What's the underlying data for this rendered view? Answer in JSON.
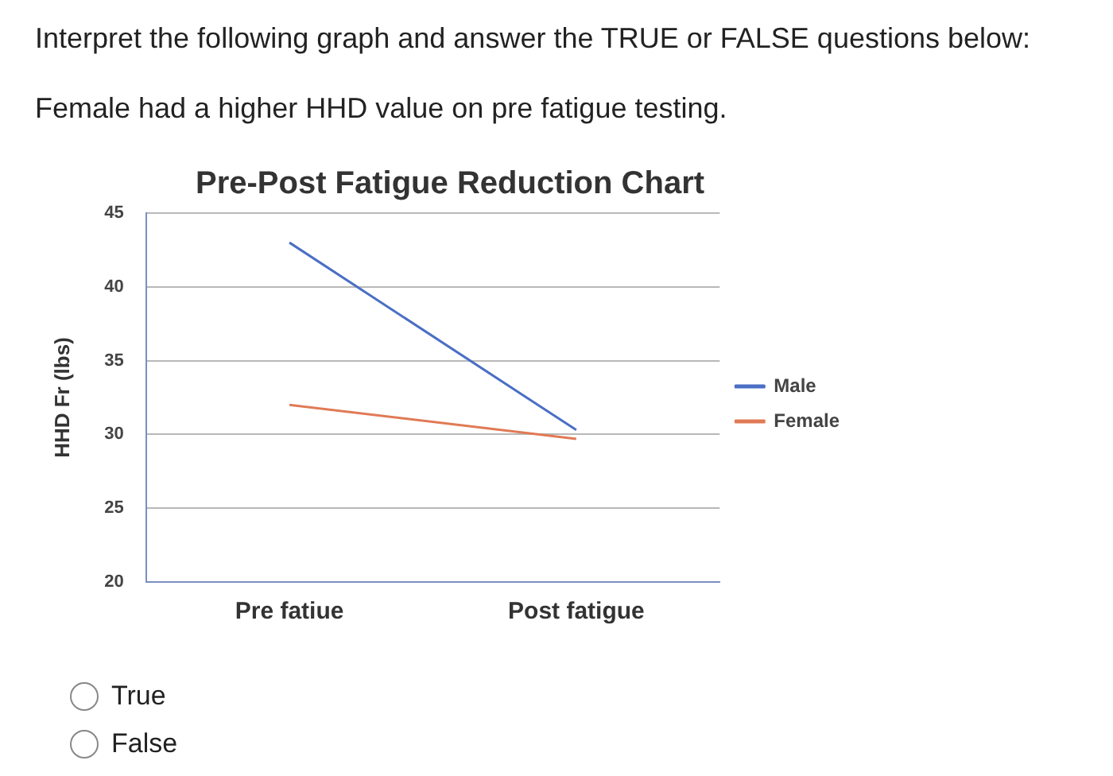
{
  "chart_data": {
    "type": "line",
    "title": "Pre-Post Fatigue Reduction Chart",
    "ylabel": "HHD Fr (lbs)",
    "categories": [
      "Pre fatiue",
      "Post fatigue"
    ],
    "series": [
      {
        "name": "Male",
        "color": "#4a6fc4",
        "values": [
          43,
          30.3
        ]
      },
      {
        "name": "Female",
        "color": "#e07a55",
        "values": [
          32,
          29.7
        ]
      }
    ],
    "ylim": [
      20,
      45
    ],
    "yticks": [
      20,
      25,
      30,
      35,
      40,
      45
    ],
    "grid": "y",
    "legend": "right",
    "marker": "none",
    "annotations": [
      "Interpret the following graph and answer the TRUE or FALSE questions below:",
      "Female had a higher HHD value on pre fatigue testing.",
      "True",
      "False"
    ]
  }
}
